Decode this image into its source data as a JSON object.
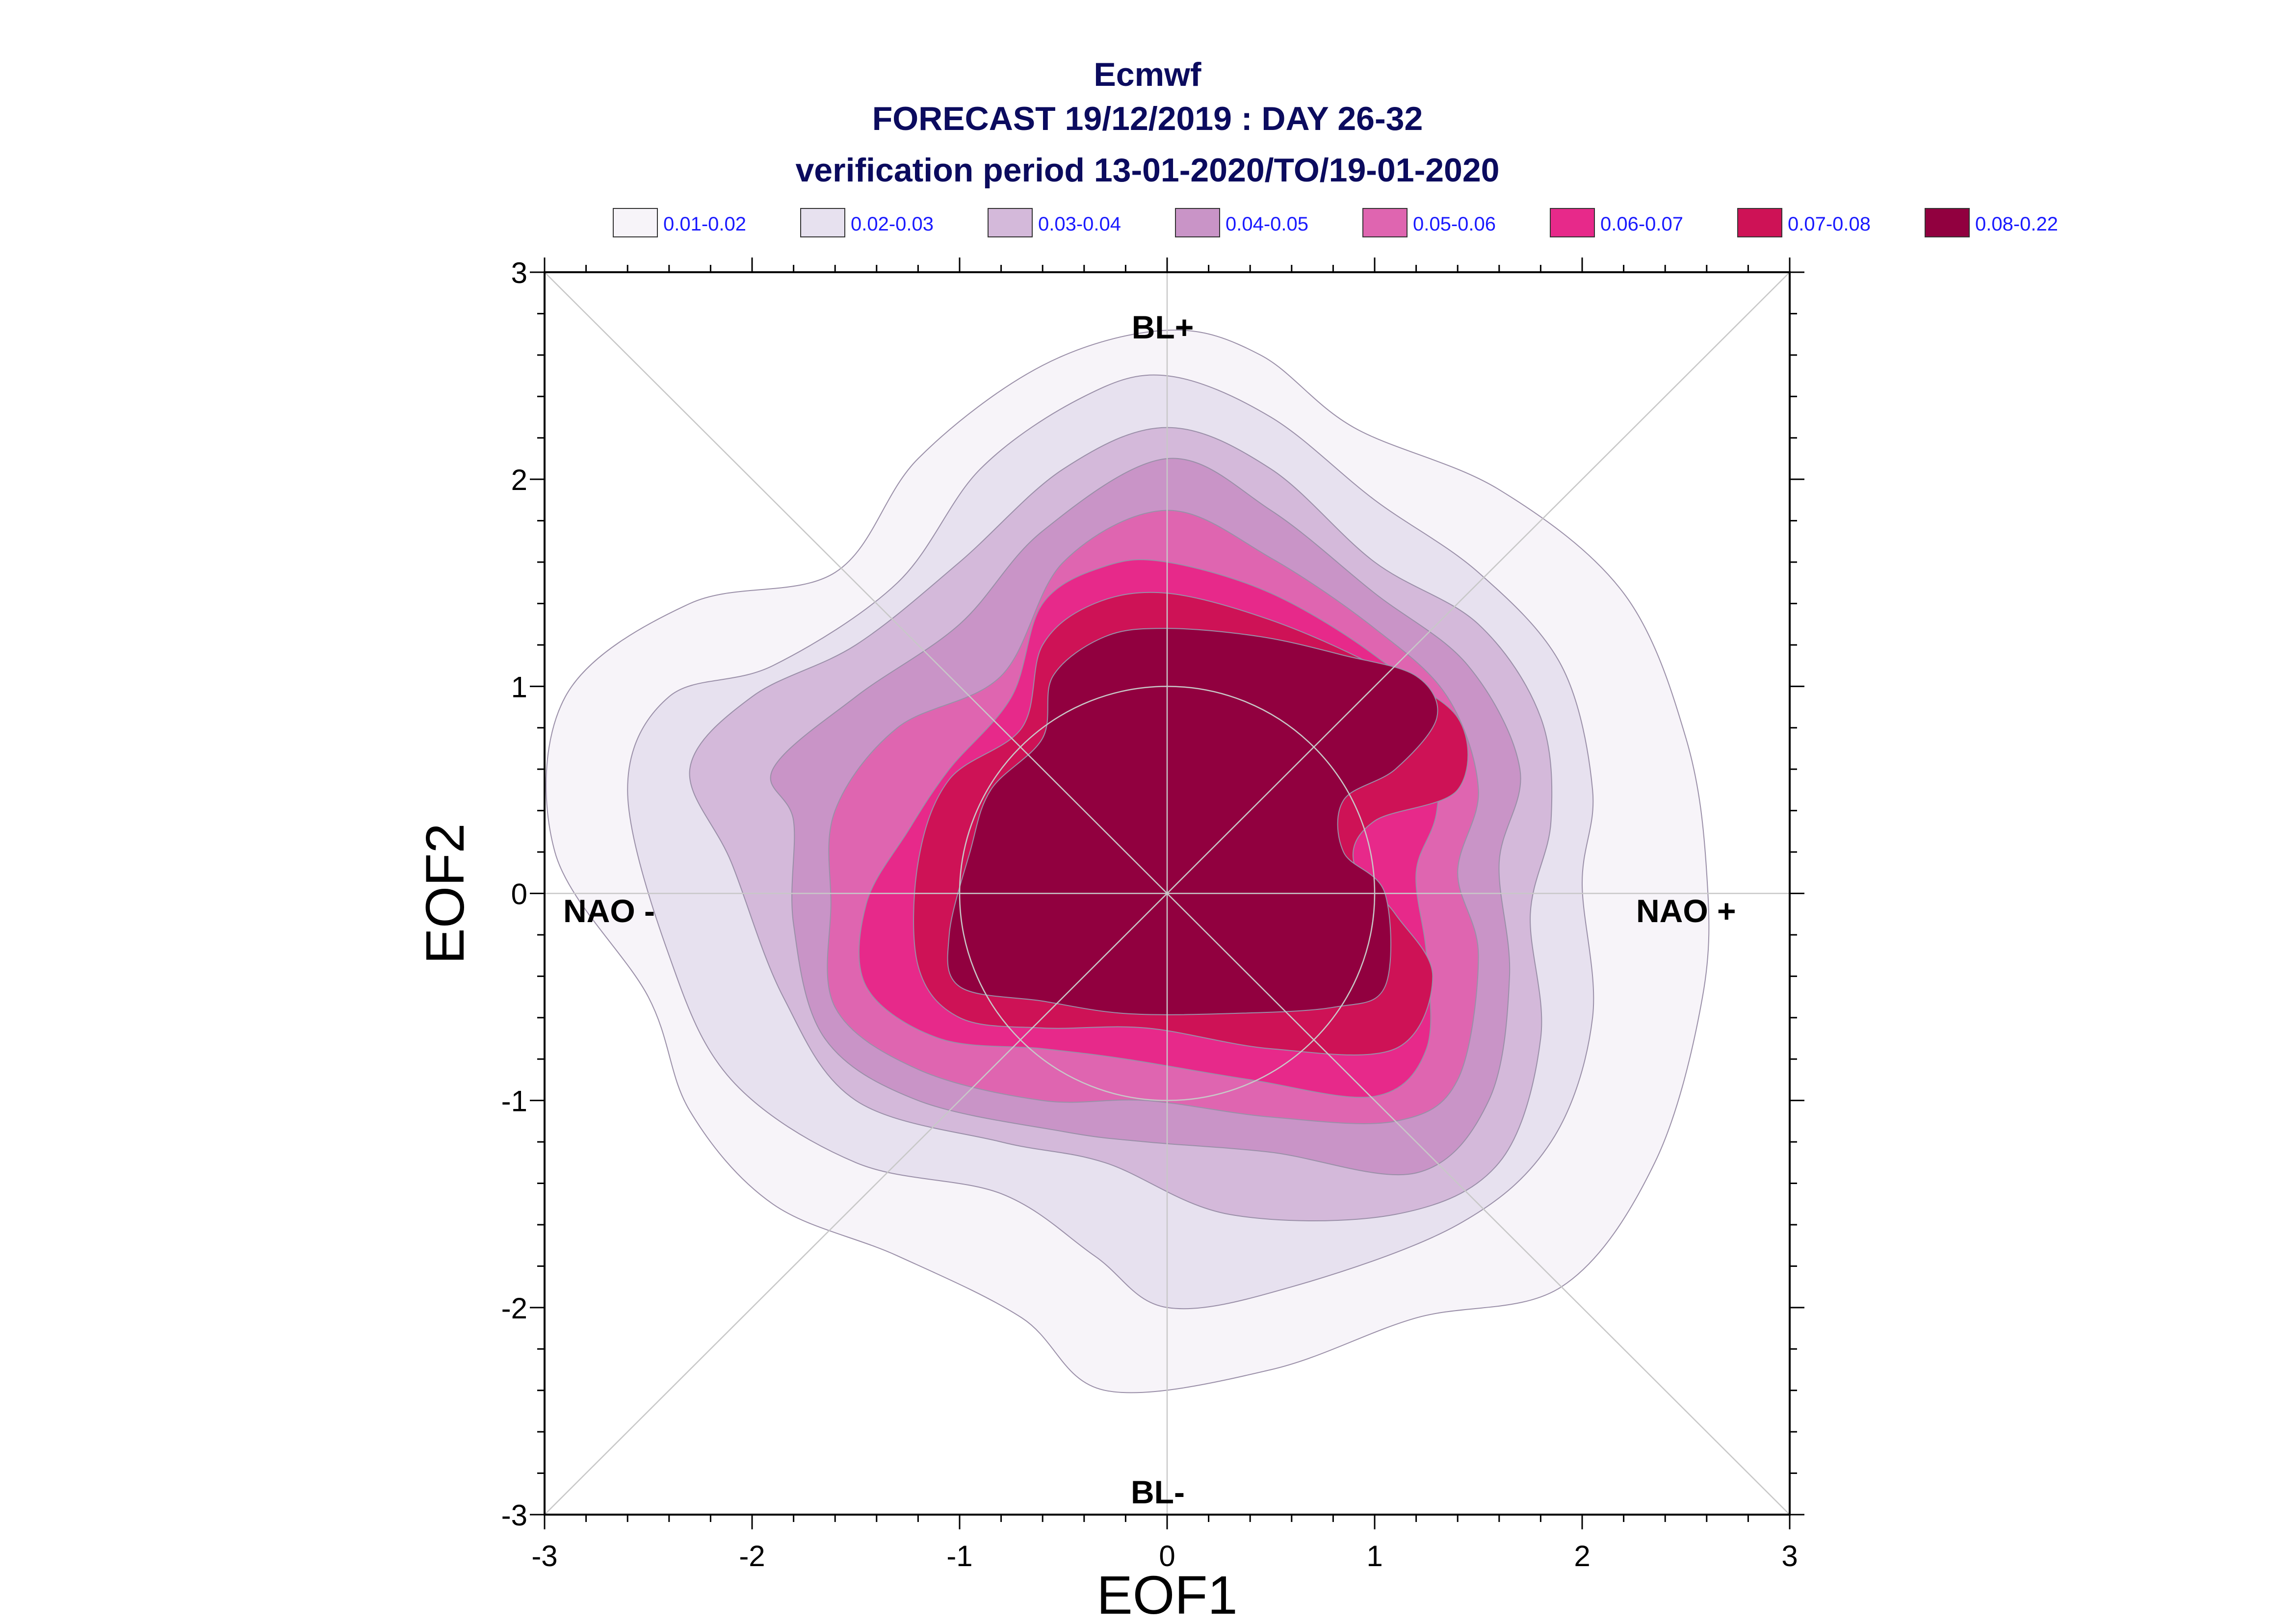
{
  "chart_data": {
    "type": "contour",
    "title_lines": [
      "Ecmwf",
      "FORECAST 19/12/2019 : DAY 26-32",
      "verification period 13-01-2020/TO/19-01-2020"
    ],
    "xlabel": "EOF1",
    "ylabel": "EOF2",
    "xlim": [
      -3,
      3
    ],
    "ylim": [
      -3,
      3
    ],
    "xticks": [
      "-3",
      "-2",
      "-1",
      "0",
      "1",
      "2",
      "3"
    ],
    "yticks": [
      "-3",
      "-2",
      "-1",
      "0",
      "1",
      "2",
      "3"
    ],
    "legend_placement": "top",
    "legend": [
      {
        "label": "0.01-0.02",
        "color": "#f7f4f9"
      },
      {
        "label": "0.02-0.03",
        "color": "#e7e1ef"
      },
      {
        "label": "0.03-0.04",
        "color": "#d4b9da"
      },
      {
        "label": "0.04-0.05",
        "color": "#c994c7"
      },
      {
        "label": "0.05-0.06",
        "color": "#df65b0"
      },
      {
        "label": "0.06-0.07",
        "color": "#e7298a"
      },
      {
        "label": "0.07-0.08",
        "color": "#ce1256"
      },
      {
        "label": "0.08-0.22",
        "color": "#91003f"
      }
    ],
    "region_labels": {
      "top": "BL+",
      "bottom": "BL-",
      "left": "NAO -",
      "right": "NAO +"
    },
    "reference_circle_radius": 1,
    "contours": [
      {
        "level": "0.01-0.02",
        "points": [
          [
            0.0,
            2.72
          ],
          [
            0.45,
            2.6
          ],
          [
            0.9,
            2.25
          ],
          [
            1.6,
            1.95
          ],
          [
            2.2,
            1.45
          ],
          [
            2.5,
            0.75
          ],
          [
            2.6,
            0.1
          ],
          [
            2.58,
            -0.5
          ],
          [
            2.35,
            -1.3
          ],
          [
            1.9,
            -1.9
          ],
          [
            1.2,
            -2.05
          ],
          [
            0.5,
            -2.3
          ],
          [
            -0.3,
            -2.4
          ],
          [
            -0.7,
            -2.05
          ],
          [
            -1.3,
            -1.75
          ],
          [
            -1.9,
            -1.5
          ],
          [
            -2.3,
            -1.05
          ],
          [
            -2.5,
            -0.5
          ],
          [
            -2.95,
            0.2
          ],
          [
            -2.9,
            0.95
          ],
          [
            -2.3,
            1.4
          ],
          [
            -1.6,
            1.55
          ],
          [
            -1.2,
            2.1
          ],
          [
            -0.6,
            2.55
          ]
        ]
      },
      {
        "level": "0.02-0.03",
        "points": [
          [
            0.0,
            2.5
          ],
          [
            0.5,
            2.3
          ],
          [
            1.0,
            1.9
          ],
          [
            1.5,
            1.55
          ],
          [
            1.9,
            1.1
          ],
          [
            2.05,
            0.5
          ],
          [
            2.0,
            0.05
          ],
          [
            2.05,
            -0.6
          ],
          [
            1.85,
            -1.2
          ],
          [
            1.4,
            -1.6
          ],
          [
            0.6,
            -1.9
          ],
          [
            0.0,
            -2.0
          ],
          [
            -0.35,
            -1.75
          ],
          [
            -0.8,
            -1.45
          ],
          [
            -1.5,
            -1.3
          ],
          [
            -2.1,
            -0.9
          ],
          [
            -2.4,
            -0.3
          ],
          [
            -2.6,
            0.5
          ],
          [
            -2.4,
            0.95
          ],
          [
            -1.9,
            1.1
          ],
          [
            -1.3,
            1.5
          ],
          [
            -0.9,
            2.05
          ],
          [
            -0.4,
            2.4
          ]
        ]
      },
      {
        "level": "0.03-0.04",
        "points": [
          [
            0.0,
            2.25
          ],
          [
            0.5,
            2.05
          ],
          [
            1.0,
            1.6
          ],
          [
            1.5,
            1.3
          ],
          [
            1.8,
            0.85
          ],
          [
            1.85,
            0.35
          ],
          [
            1.75,
            -0.1
          ],
          [
            1.8,
            -0.7
          ],
          [
            1.6,
            -1.3
          ],
          [
            1.1,
            -1.55
          ],
          [
            0.3,
            -1.55
          ],
          [
            -0.3,
            -1.3
          ],
          [
            -0.8,
            -1.2
          ],
          [
            -1.5,
            -1.0
          ],
          [
            -1.85,
            -0.5
          ],
          [
            -2.1,
            0.15
          ],
          [
            -2.3,
            0.6
          ],
          [
            -2.0,
            0.95
          ],
          [
            -1.5,
            1.2
          ],
          [
            -1.0,
            1.6
          ],
          [
            -0.5,
            2.05
          ]
        ]
      },
      {
        "level": "0.04-0.05",
        "points": [
          [
            0.0,
            2.1
          ],
          [
            0.5,
            1.85
          ],
          [
            1.0,
            1.45
          ],
          [
            1.45,
            1.1
          ],
          [
            1.7,
            0.6
          ],
          [
            1.6,
            0.15
          ],
          [
            1.65,
            -0.4
          ],
          [
            1.55,
            -1.0
          ],
          [
            1.2,
            -1.35
          ],
          [
            0.5,
            -1.25
          ],
          [
            -0.1,
            -1.2
          ],
          [
            -0.5,
            -1.15
          ],
          [
            -1.2,
            -1.0
          ],
          [
            -1.65,
            -0.7
          ],
          [
            -1.8,
            -0.15
          ],
          [
            -1.8,
            0.35
          ],
          [
            -1.9,
            0.6
          ],
          [
            -1.5,
            0.95
          ],
          [
            -1.0,
            1.3
          ],
          [
            -0.6,
            1.75
          ]
        ]
      },
      {
        "level": "0.05-0.06",
        "points": [
          [
            0.0,
            1.85
          ],
          [
            0.5,
            1.62
          ],
          [
            1.0,
            1.28
          ],
          [
            1.35,
            0.95
          ],
          [
            1.5,
            0.5
          ],
          [
            1.4,
            0.1
          ],
          [
            1.5,
            -0.3
          ],
          [
            1.4,
            -0.9
          ],
          [
            1.1,
            -1.1
          ],
          [
            0.5,
            -1.08
          ],
          [
            -0.1,
            -1.0
          ],
          [
            -0.6,
            -1.0
          ],
          [
            -1.2,
            -0.85
          ],
          [
            -1.6,
            -0.55
          ],
          [
            -1.62,
            -0.05
          ],
          [
            -1.6,
            0.4
          ],
          [
            -1.3,
            0.8
          ],
          [
            -0.8,
            1.05
          ],
          [
            -0.5,
            1.6
          ]
        ]
      },
      {
        "level": "0.06-0.07",
        "points": [
          [
            0.0,
            1.6
          ],
          [
            0.5,
            1.45
          ],
          [
            1.0,
            1.15
          ],
          [
            1.3,
            0.85
          ],
          [
            1.3,
            0.4
          ],
          [
            1.2,
            0.1
          ],
          [
            1.25,
            -0.3
          ],
          [
            1.25,
            -0.75
          ],
          [
            1.0,
            -0.98
          ],
          [
            0.4,
            -0.9
          ],
          [
            -0.2,
            -0.8
          ],
          [
            -0.6,
            -0.75
          ],
          [
            -1.1,
            -0.7
          ],
          [
            -1.45,
            -0.45
          ],
          [
            -1.45,
            -0.05
          ],
          [
            -1.25,
            0.3
          ],
          [
            -1.05,
            0.6
          ],
          [
            -0.75,
            0.95
          ],
          [
            -0.6,
            1.4
          ],
          [
            -0.3,
            1.58
          ]
        ]
      },
      {
        "level": "0.07-0.08",
        "points": [
          [
            0.0,
            1.45
          ],
          [
            0.5,
            1.32
          ],
          [
            1.0,
            1.1
          ],
          [
            1.4,
            0.85
          ],
          [
            1.4,
            0.5
          ],
          [
            1.0,
            0.35
          ],
          [
            0.9,
            0.15
          ],
          [
            1.1,
            -0.1
          ],
          [
            1.28,
            -0.4
          ],
          [
            1.1,
            -0.75
          ],
          [
            0.5,
            -0.75
          ],
          [
            -0.1,
            -0.65
          ],
          [
            -0.6,
            -0.65
          ],
          [
            -1.0,
            -0.6
          ],
          [
            -1.2,
            -0.35
          ],
          [
            -1.2,
            0.15
          ],
          [
            -1.05,
            0.55
          ],
          [
            -0.7,
            0.8
          ],
          [
            -0.6,
            1.2
          ],
          [
            -0.35,
            1.4
          ]
        ]
      },
      {
        "level": "0.08-0.22",
        "points": [
          [
            0.0,
            1.28
          ],
          [
            0.45,
            1.24
          ],
          [
            0.85,
            1.15
          ],
          [
            1.2,
            1.05
          ],
          [
            1.3,
            0.85
          ],
          [
            1.1,
            0.6
          ],
          [
            0.85,
            0.45
          ],
          [
            0.85,
            0.2
          ],
          [
            1.05,
            0.0
          ],
          [
            1.05,
            -0.45
          ],
          [
            0.8,
            -0.55
          ],
          [
            0.3,
            -0.58
          ],
          [
            -0.2,
            -0.58
          ],
          [
            -0.6,
            -0.52
          ],
          [
            -1.0,
            -0.45
          ],
          [
            -1.05,
            -0.2
          ],
          [
            -0.95,
            0.2
          ],
          [
            -0.85,
            0.5
          ],
          [
            -0.6,
            0.75
          ],
          [
            -0.55,
            1.05
          ],
          [
            -0.3,
            1.24
          ]
        ]
      }
    ]
  }
}
